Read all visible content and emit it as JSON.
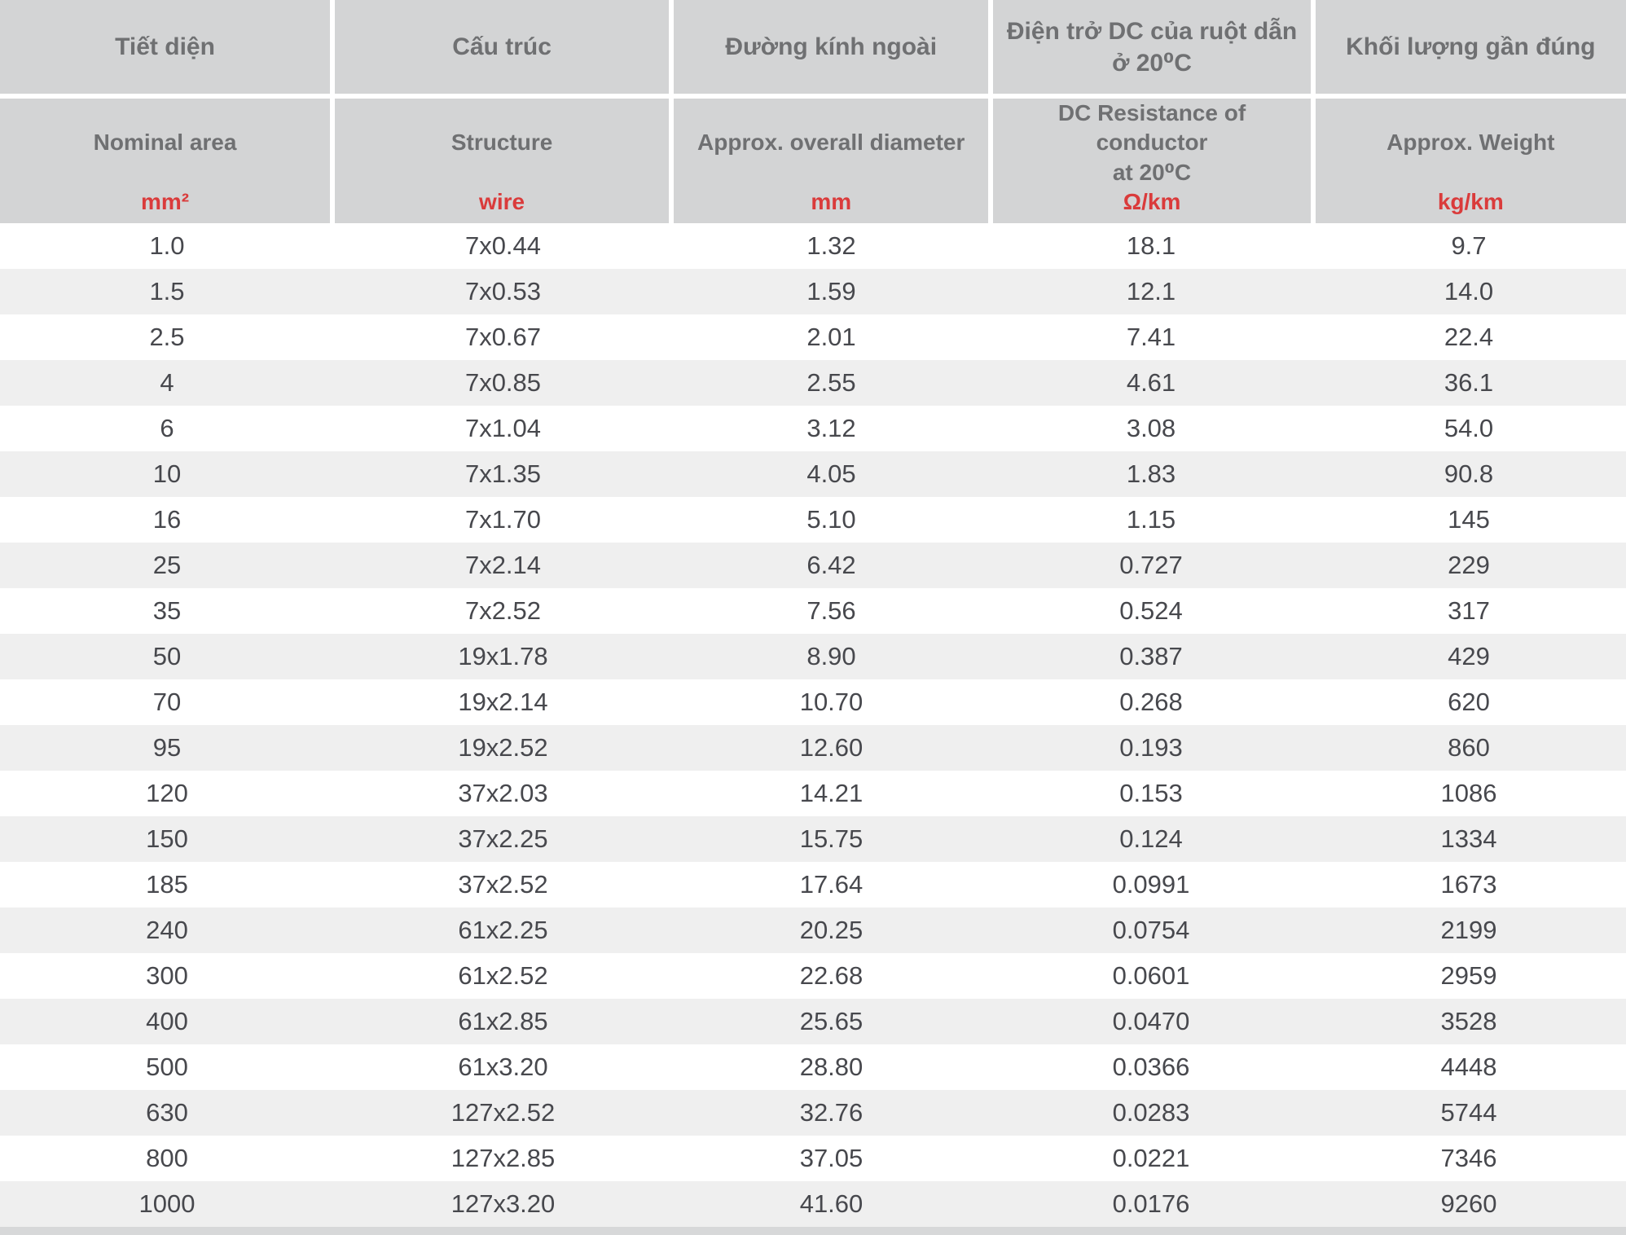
{
  "colors": {
    "header_bg": "#d3d4d5",
    "header_text": "#6f7072",
    "unit_text": "#da3b3b",
    "data_text": "#47484d",
    "zebra_row_bg": "#efefef",
    "gap_white": "#ffffff",
    "bottom_strip": "#d7d8d9"
  },
  "table": {
    "columns": [
      {
        "id": "nominal-area",
        "vi": "Tiết diện",
        "en": "Nominal area",
        "unit": "mm²"
      },
      {
        "id": "structure",
        "vi": "Cấu trúc",
        "en": "Structure",
        "unit": "wire"
      },
      {
        "id": "overall-diameter",
        "vi": "Đường kính ngoài",
        "en": "Approx. overall diameter",
        "unit": "mm"
      },
      {
        "id": "dc-resistance",
        "vi": "Điện trở DC của ruột dẫn\nở 20⁰C",
        "en": "DC Resistance of conductor\nat 20⁰C",
        "unit": "Ω/km"
      },
      {
        "id": "weight",
        "vi": "Khối lượng gần đúng",
        "en": "Approx. Weight",
        "unit": "kg/km"
      }
    ],
    "rows": [
      [
        "1.0",
        "7x0.44",
        "1.32",
        "18.1",
        "9.7"
      ],
      [
        "1.5",
        "7x0.53",
        "1.59",
        "12.1",
        "14.0"
      ],
      [
        "2.5",
        "7x0.67",
        "2.01",
        "7.41",
        "22.4"
      ],
      [
        "4",
        "7x0.85",
        "2.55",
        "4.61",
        "36.1"
      ],
      [
        "6",
        "7x1.04",
        "3.12",
        "3.08",
        "54.0"
      ],
      [
        "10",
        "7x1.35",
        "4.05",
        "1.83",
        "90.8"
      ],
      [
        "16",
        "7x1.70",
        "5.10",
        "1.15",
        "145"
      ],
      [
        "25",
        "7x2.14",
        "6.42",
        "0.727",
        "229"
      ],
      [
        "35",
        "7x2.52",
        "7.56",
        "0.524",
        "317"
      ],
      [
        "50",
        "19x1.78",
        "8.90",
        "0.387",
        "429"
      ],
      [
        "70",
        "19x2.14",
        "10.70",
        "0.268",
        "620"
      ],
      [
        "95",
        "19x2.52",
        "12.60",
        "0.193",
        "860"
      ],
      [
        "120",
        "37x2.03",
        "14.21",
        "0.153",
        "1086"
      ],
      [
        "150",
        "37x2.25",
        "15.75",
        "0.124",
        "1334"
      ],
      [
        "185",
        "37x2.52",
        "17.64",
        "0.0991",
        "1673"
      ],
      [
        "240",
        "61x2.25",
        "20.25",
        "0.0754",
        "2199"
      ],
      [
        "300",
        "61x2.52",
        "22.68",
        "0.0601",
        "2959"
      ],
      [
        "400",
        "61x2.85",
        "25.65",
        "0.0470",
        "3528"
      ],
      [
        "500",
        "61x3.20",
        "28.80",
        "0.0366",
        "4448"
      ],
      [
        "630",
        "127x2.52",
        "32.76",
        "0.0283",
        "5744"
      ],
      [
        "800",
        "127x2.85",
        "37.05",
        "0.0221",
        "7346"
      ],
      [
        "1000",
        "127x3.20",
        "41.60",
        "0.0176",
        "9260"
      ]
    ]
  }
}
